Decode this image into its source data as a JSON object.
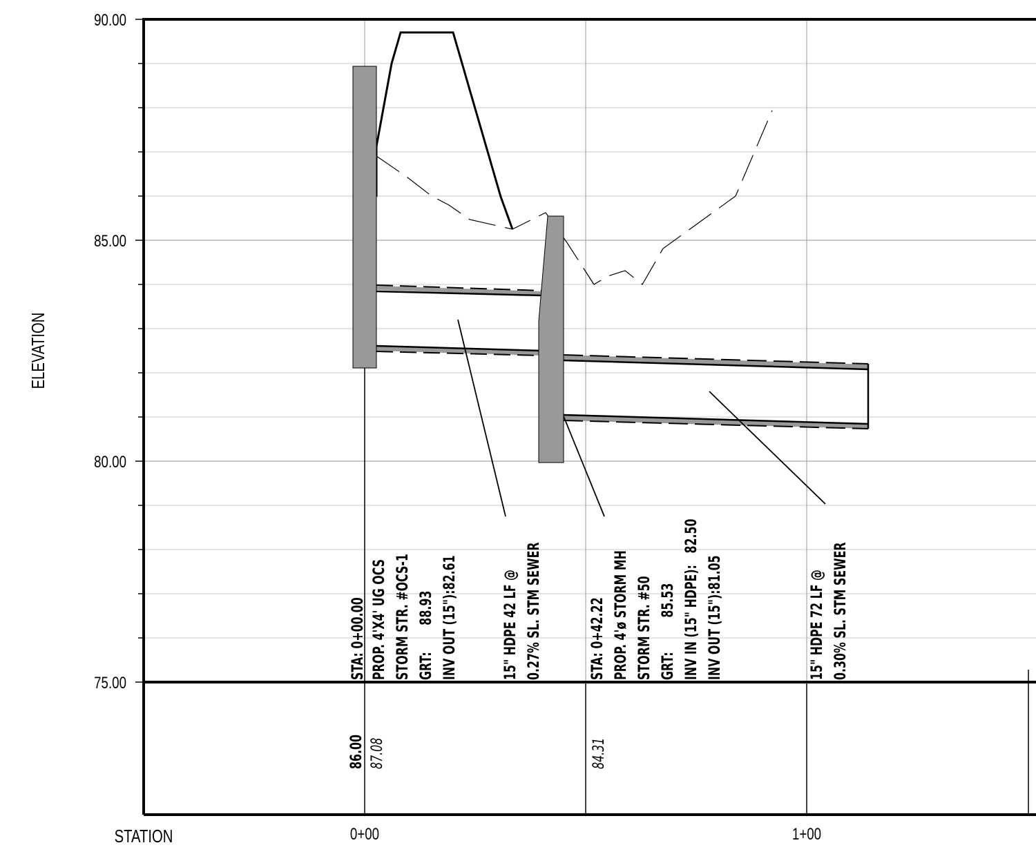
{
  "axes": {
    "y_title": "ELEVATION",
    "x_title": "STATION",
    "y_ticks": [
      "90.00",
      "85.00",
      "80.00",
      "75.00"
    ],
    "x_ticks": [
      "0+00",
      "1+00"
    ]
  },
  "structures": {
    "ocs": {
      "lines": [
        "STA: 0+00.00",
        "PROP. 4'X4' UG OCS",
        "STORM STR. #OCS-1",
        "GRT:       88.93",
        "INV OUT (15\"):82.61"
      ]
    },
    "mh": {
      "lines": [
        "STA: 0+42.22",
        "PROP. 4'ø STORM MH",
        "STORM STR. #50",
        "GRT:         85.53",
        "INV IN (15\" HDPE):   82.50",
        "INV OUT (15\"):81.05"
      ]
    }
  },
  "pipes": {
    "pipe_1": {
      "lines": [
        "15\" HDPE 42 LF @",
        "0.27% SL. STM SEWER"
      ]
    },
    "pipe_2": {
      "lines": [
        "15\" HDPE 72 LF @",
        "0.30% SL. STM SEWER"
      ]
    }
  },
  "band": {
    "ocs_existing": "86.00",
    "ocs_proposed": "87.08",
    "mh_proposed": "84.31"
  },
  "colors": {
    "structure_fill": "#999999",
    "grid": "#b4b4b4",
    "ink": "#000000"
  }
}
